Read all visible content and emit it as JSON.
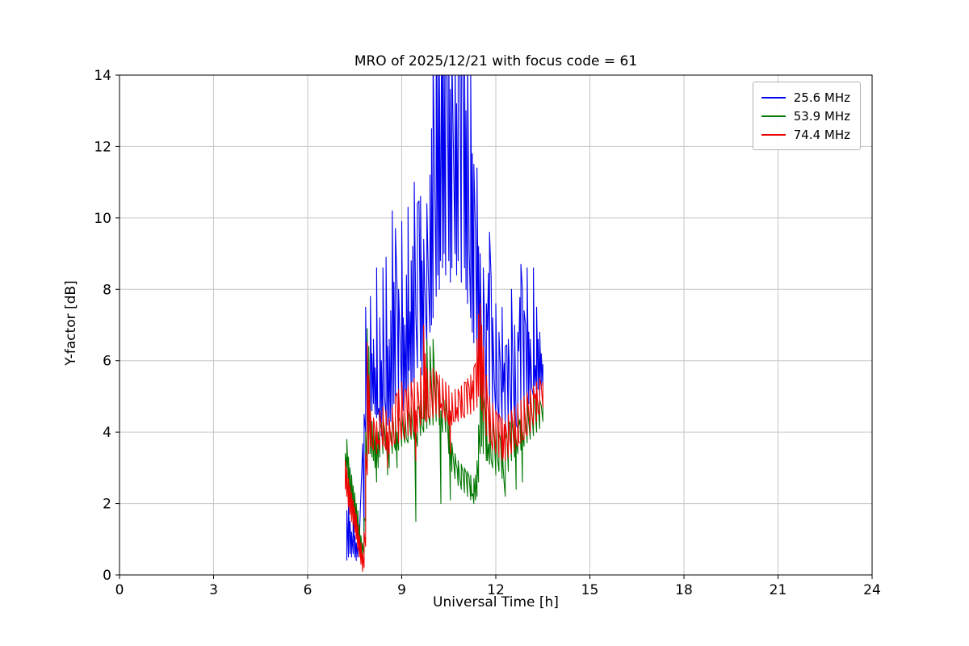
{
  "chart_data": {
    "type": "line",
    "title": "MRO of 2025/12/21 with focus code = 61",
    "xlabel": "Universal Time [h]",
    "ylabel": "Y-factor [dB]",
    "xlim": [
      0,
      24
    ],
    "ylim": [
      0,
      14
    ],
    "xticks": [
      0,
      3,
      6,
      9,
      12,
      15,
      18,
      21,
      24
    ],
    "yticks": [
      0,
      2,
      4,
      6,
      8,
      10,
      12,
      14
    ],
    "grid": true,
    "legend_position": "upper right",
    "series": [
      {
        "name": "25.6 MHz",
        "color": "#0000ee",
        "envelope": [
          [
            7.25,
            0.4,
            1.8
          ],
          [
            7.3,
            0.5,
            2.1
          ],
          [
            7.35,
            0.6,
            1.5
          ],
          [
            7.4,
            0.5,
            1.2
          ],
          [
            7.45,
            0.6,
            1.9
          ],
          [
            7.5,
            0.5,
            1.1
          ],
          [
            7.55,
            0.4,
            0.9
          ],
          [
            7.6,
            0.5,
            0.8
          ],
          [
            7.8,
            1.0,
            4.5
          ],
          [
            7.85,
            4.0,
            7.5
          ],
          [
            7.9,
            4.3,
            6.0
          ],
          [
            7.95,
            4.0,
            5.5
          ],
          [
            8.0,
            4.4,
            7.8
          ],
          [
            8.05,
            4.6,
            6.2
          ],
          [
            8.1,
            4.8,
            6.6
          ],
          [
            8.15,
            4.5,
            5.8
          ],
          [
            8.2,
            4.4,
            8.6
          ],
          [
            8.3,
            4.2,
            7.2
          ],
          [
            8.35,
            3.9,
            6.0
          ],
          [
            8.4,
            4.2,
            8.6
          ],
          [
            8.5,
            4.4,
            8.9
          ],
          [
            8.55,
            4.2,
            6.4
          ],
          [
            8.6,
            4.0,
            6.6
          ],
          [
            8.65,
            4.3,
            7.4
          ],
          [
            8.7,
            4.6,
            10.2
          ],
          [
            8.75,
            4.8,
            8.2
          ],
          [
            8.8,
            5.0,
            9.7
          ],
          [
            8.9,
            4.8,
            8.0
          ],
          [
            9.0,
            5.0,
            9.9
          ],
          [
            9.05,
            4.6,
            7.2
          ],
          [
            9.1,
            4.8,
            7.0
          ],
          [
            9.15,
            5.0,
            8.4
          ],
          [
            9.2,
            5.2,
            10.3
          ],
          [
            9.3,
            5.0,
            8.8
          ],
          [
            9.35,
            5.4,
            9.2
          ],
          [
            9.4,
            5.5,
            11.0
          ],
          [
            9.5,
            5.8,
            10.4
          ],
          [
            9.6,
            6.0,
            10.6
          ],
          [
            9.65,
            5.6,
            8.8
          ],
          [
            9.7,
            6.0,
            9.4
          ],
          [
            9.8,
            6.4,
            10.4
          ],
          [
            9.9,
            6.8,
            11.2
          ],
          [
            9.95,
            7.0,
            12.5
          ],
          [
            10.0,
            7.2,
            14.6
          ],
          [
            10.1,
            7.8,
            14.8
          ],
          [
            10.15,
            8.4,
            14.8
          ],
          [
            10.2,
            8.0,
            14.8
          ],
          [
            10.3,
            8.6,
            14.8
          ],
          [
            10.35,
            9.0,
            14.8
          ],
          [
            10.4,
            8.4,
            14.8
          ],
          [
            10.5,
            8.8,
            14.8
          ],
          [
            10.55,
            8.2,
            13.6
          ],
          [
            10.6,
            8.6,
            14.8
          ],
          [
            10.7,
            9.0,
            14.8
          ],
          [
            10.75,
            8.4,
            13.2
          ],
          [
            10.8,
            8.8,
            14.8
          ],
          [
            10.9,
            8.2,
            14.8
          ],
          [
            11.0,
            8.6,
            14.8
          ],
          [
            11.05,
            8.0,
            13.0
          ],
          [
            11.1,
            7.6,
            14.8
          ],
          [
            11.2,
            7.2,
            14.2
          ],
          [
            11.25,
            6.8,
            11.8
          ],
          [
            11.3,
            6.5,
            11.5
          ],
          [
            11.4,
            6.2,
            11.4
          ],
          [
            11.45,
            6.0,
            9.2
          ],
          [
            11.5,
            5.6,
            9.0
          ],
          [
            11.6,
            5.2,
            8.6
          ],
          [
            11.7,
            4.8,
            7.6
          ],
          [
            11.8,
            4.6,
            9.6
          ],
          [
            11.9,
            4.5,
            7.2
          ],
          [
            12.0,
            4.5,
            7.6
          ],
          [
            12.1,
            4.3,
            6.8
          ],
          [
            12.2,
            4.2,
            7.5
          ],
          [
            12.3,
            4.1,
            6.4
          ],
          [
            12.4,
            4.0,
            6.6
          ],
          [
            12.5,
            4.1,
            8.0
          ],
          [
            12.6,
            4.2,
            7.0
          ],
          [
            12.7,
            4.1,
            6.8
          ],
          [
            12.8,
            4.4,
            8.7
          ],
          [
            12.9,
            4.6,
            7.4
          ],
          [
            13.0,
            4.6,
            8.6
          ],
          [
            13.05,
            4.8,
            6.8
          ],
          [
            13.1,
            5.0,
            6.6
          ],
          [
            13.2,
            5.0,
            8.6
          ],
          [
            13.3,
            5.0,
            7.5
          ],
          [
            13.35,
            5.2,
            6.6
          ],
          [
            13.4,
            5.0,
            6.8
          ],
          [
            13.45,
            5.2,
            6.2
          ],
          [
            13.5,
            5.3,
            5.9
          ]
        ]
      },
      {
        "name": "53.9 MHz",
        "color": "#007700",
        "envelope": [
          [
            7.2,
            2.9,
            3.4
          ],
          [
            7.25,
            3.0,
            3.8
          ],
          [
            7.3,
            2.6,
            3.3
          ],
          [
            7.35,
            2.3,
            3.0
          ],
          [
            7.4,
            2.0,
            2.8
          ],
          [
            7.45,
            1.8,
            2.5
          ],
          [
            7.5,
            1.6,
            2.3
          ],
          [
            7.55,
            1.3,
            2.0
          ],
          [
            7.6,
            1.0,
            1.8
          ],
          [
            7.65,
            0.7,
            1.4
          ],
          [
            7.7,
            0.5,
            1.1
          ],
          [
            7.75,
            0.4,
            0.9
          ],
          [
            7.8,
            0.6,
            1.6
          ],
          [
            7.85,
            1.5,
            4.0
          ],
          [
            7.9,
            3.0,
            6.9
          ],
          [
            7.95,
            3.4,
            6.4
          ],
          [
            8.0,
            3.4,
            4.6
          ],
          [
            8.05,
            3.3,
            4.3
          ],
          [
            8.1,
            3.2,
            4.2
          ],
          [
            8.15,
            3.0,
            4.0
          ],
          [
            8.2,
            2.6,
            3.9
          ],
          [
            8.25,
            3.0,
            4.0
          ],
          [
            8.3,
            3.3,
            4.1
          ],
          [
            8.4,
            3.4,
            4.4
          ],
          [
            8.5,
            3.5,
            4.4
          ],
          [
            8.55,
            2.8,
            3.8
          ],
          [
            8.6,
            3.0,
            4.0
          ],
          [
            8.7,
            3.4,
            4.3
          ],
          [
            8.8,
            3.5,
            4.4
          ],
          [
            8.85,
            3.0,
            4.0
          ],
          [
            8.9,
            3.5,
            4.4
          ],
          [
            9.0,
            3.6,
            4.5
          ],
          [
            9.1,
            3.7,
            4.5
          ],
          [
            9.2,
            3.7,
            4.6
          ],
          [
            9.3,
            3.8,
            4.7
          ],
          [
            9.4,
            3.8,
            4.8
          ],
          [
            9.45,
            1.5,
            4.0
          ],
          [
            9.5,
            3.6,
            4.6
          ],
          [
            9.6,
            3.9,
            4.9
          ],
          [
            9.7,
            4.0,
            5.2
          ],
          [
            9.8,
            4.1,
            6.6
          ],
          [
            9.9,
            4.2,
            6.4
          ],
          [
            10.0,
            4.2,
            6.6
          ],
          [
            10.1,
            4.3,
            5.6
          ],
          [
            10.2,
            4.2,
            5.4
          ],
          [
            10.25,
            2.0,
            4.6
          ],
          [
            10.3,
            4.0,
            5.0
          ],
          [
            10.4,
            4.0,
            4.9
          ],
          [
            10.5,
            3.4,
            4.6
          ],
          [
            10.55,
            2.1,
            3.8
          ],
          [
            10.6,
            2.9,
            3.7
          ],
          [
            10.7,
            2.7,
            3.4
          ],
          [
            10.8,
            2.5,
            3.2
          ],
          [
            10.9,
            2.4,
            3.1
          ],
          [
            11.0,
            2.3,
            3.0
          ],
          [
            11.1,
            2.2,
            2.9
          ],
          [
            11.2,
            2.1,
            2.8
          ],
          [
            11.3,
            2.0,
            2.7
          ],
          [
            11.35,
            2.1,
            2.8
          ],
          [
            11.4,
            2.2,
            3.2
          ],
          [
            11.45,
            2.6,
            4.2
          ],
          [
            11.5,
            3.4,
            6.9
          ],
          [
            11.55,
            3.6,
            6.2
          ],
          [
            11.6,
            3.4,
            5.0
          ],
          [
            11.7,
            3.2,
            4.6
          ],
          [
            11.8,
            3.1,
            4.4
          ],
          [
            11.9,
            3.0,
            4.3
          ],
          [
            12.0,
            2.8,
            4.2
          ],
          [
            12.1,
            2.9,
            4.0
          ],
          [
            12.2,
            2.7,
            3.9
          ],
          [
            12.3,
            2.2,
            3.8
          ],
          [
            12.4,
            2.9,
            4.2
          ],
          [
            12.5,
            3.2,
            4.4
          ],
          [
            12.6,
            3.3,
            4.6
          ],
          [
            12.65,
            2.4,
            3.8
          ],
          [
            12.7,
            3.4,
            4.6
          ],
          [
            12.8,
            3.5,
            4.7
          ],
          [
            12.85,
            2.6,
            4.0
          ],
          [
            12.9,
            3.6,
            4.8
          ],
          [
            13.0,
            3.7,
            4.9
          ],
          [
            13.1,
            3.8,
            5.0
          ],
          [
            13.2,
            3.9,
            5.1
          ],
          [
            13.3,
            4.0,
            5.0
          ],
          [
            13.4,
            4.1,
            4.9
          ],
          [
            13.5,
            4.3,
            4.8
          ]
        ]
      },
      {
        "name": "74.4 MHz",
        "color": "#ee0000",
        "envelope": [
          [
            7.2,
            2.4,
            3.2
          ],
          [
            7.25,
            2.2,
            3.0
          ],
          [
            7.3,
            1.9,
            2.7
          ],
          [
            7.35,
            1.7,
            2.5
          ],
          [
            7.4,
            1.5,
            2.3
          ],
          [
            7.45,
            1.4,
            2.1
          ],
          [
            7.5,
            1.2,
            1.9
          ],
          [
            7.55,
            1.0,
            1.7
          ],
          [
            7.6,
            0.7,
            1.4
          ],
          [
            7.65,
            0.5,
            1.1
          ],
          [
            7.7,
            0.3,
            0.9
          ],
          [
            7.75,
            0.1,
            0.6
          ],
          [
            7.8,
            0.2,
            1.2
          ],
          [
            7.85,
            0.8,
            3.4
          ],
          [
            7.9,
            2.8,
            6.5
          ],
          [
            7.95,
            3.4,
            5.6
          ],
          [
            8.0,
            3.6,
            4.6
          ],
          [
            8.1,
            3.5,
            4.4
          ],
          [
            8.2,
            3.4,
            4.3
          ],
          [
            8.3,
            3.5,
            4.6
          ],
          [
            8.4,
            3.6,
            4.7
          ],
          [
            8.5,
            3.5,
            4.6
          ],
          [
            8.55,
            3.0,
            4.0
          ],
          [
            8.6,
            3.4,
            4.4
          ],
          [
            8.7,
            3.6,
            4.7
          ],
          [
            8.8,
            3.7,
            5.0
          ],
          [
            8.9,
            3.7,
            5.2
          ],
          [
            9.0,
            3.8,
            5.4
          ],
          [
            9.1,
            3.8,
            5.2
          ],
          [
            9.2,
            3.9,
            5.3
          ],
          [
            9.3,
            3.9,
            5.4
          ],
          [
            9.4,
            4.0,
            5.5
          ],
          [
            9.45,
            3.2,
            4.6
          ],
          [
            9.5,
            4.0,
            5.4
          ],
          [
            9.6,
            4.2,
            5.8
          ],
          [
            9.7,
            4.4,
            7.0
          ],
          [
            9.75,
            4.3,
            6.2
          ],
          [
            9.8,
            4.3,
            5.8
          ],
          [
            9.9,
            4.4,
            5.7
          ],
          [
            10.0,
            4.4,
            5.8
          ],
          [
            10.1,
            4.5,
            5.7
          ],
          [
            10.2,
            4.4,
            5.6
          ],
          [
            10.3,
            4.4,
            5.5
          ],
          [
            10.4,
            4.3,
            5.4
          ],
          [
            10.5,
            4.2,
            5.3
          ],
          [
            10.55,
            3.4,
            4.6
          ],
          [
            10.6,
            4.2,
            5.1
          ],
          [
            10.7,
            4.3,
            5.2
          ],
          [
            10.8,
            4.3,
            5.2
          ],
          [
            10.9,
            4.4,
            5.3
          ],
          [
            11.0,
            4.4,
            5.4
          ],
          [
            11.1,
            4.5,
            5.5
          ],
          [
            11.2,
            4.5,
            5.6
          ],
          [
            11.3,
            4.6,
            5.8
          ],
          [
            11.4,
            4.7,
            6.6
          ],
          [
            11.45,
            5.0,
            7.3
          ],
          [
            11.5,
            5.0,
            7.6
          ],
          [
            11.55,
            4.6,
            7.0
          ],
          [
            11.6,
            4.3,
            6.4
          ],
          [
            11.7,
            3.9,
            5.6
          ],
          [
            11.8,
            3.7,
            5.0
          ],
          [
            11.9,
            3.5,
            4.8
          ],
          [
            12.0,
            3.4,
            4.6
          ],
          [
            12.1,
            3.3,
            4.5
          ],
          [
            12.2,
            3.2,
            4.4
          ],
          [
            12.3,
            3.2,
            4.3
          ],
          [
            12.4,
            3.3,
            4.5
          ],
          [
            12.5,
            3.4,
            4.6
          ],
          [
            12.6,
            3.5,
            4.7
          ],
          [
            12.7,
            3.6,
            4.8
          ],
          [
            12.8,
            3.7,
            4.9
          ],
          [
            12.9,
            3.8,
            5.0
          ],
          [
            13.0,
            3.9,
            5.1
          ],
          [
            13.1,
            4.0,
            5.2
          ],
          [
            13.2,
            4.2,
            5.3
          ],
          [
            13.3,
            4.3,
            5.4
          ],
          [
            13.4,
            4.5,
            5.5
          ],
          [
            13.5,
            4.7,
            5.4
          ]
        ]
      }
    ]
  }
}
